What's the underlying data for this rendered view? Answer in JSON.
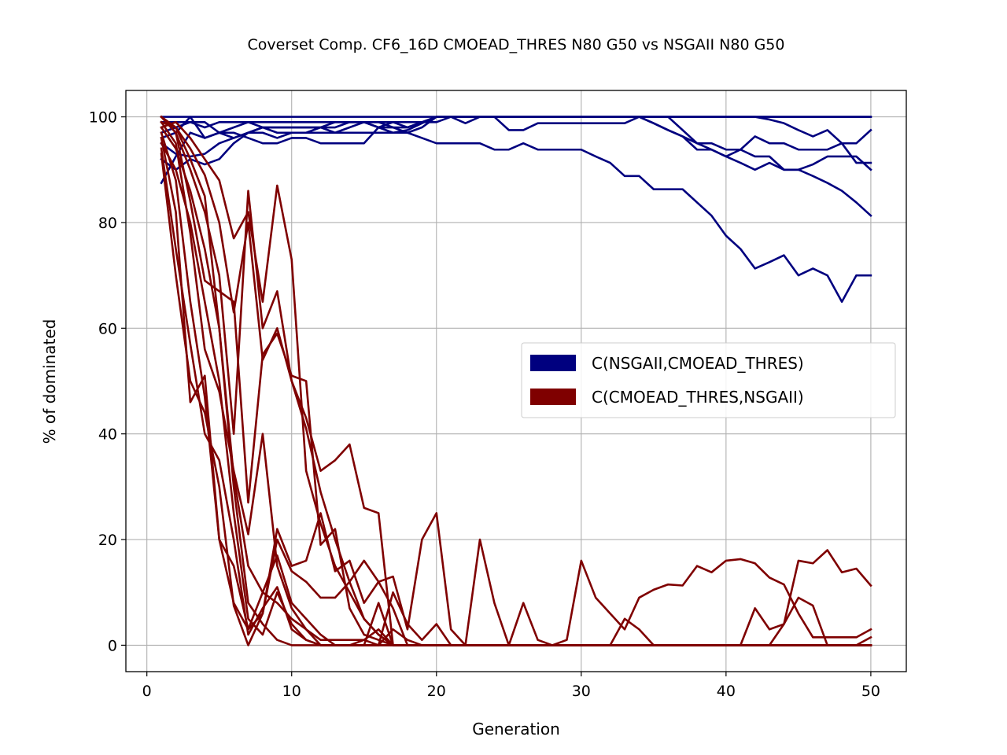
{
  "chart_data": {
    "type": "line",
    "title": "Coverset Comp. CF6_16D CMOEAD_THRES N80 G50 vs NSGAII N80 G50",
    "xlabel": "Generation",
    "ylabel": "% of dominated",
    "xlim": [
      -1.45,
      52.45
    ],
    "ylim": [
      -5,
      105
    ],
    "xticks": [
      0,
      10,
      20,
      30,
      40,
      50
    ],
    "yticks": [
      0,
      20,
      40,
      60,
      80,
      100
    ],
    "grid": true,
    "legend_position": "center-right",
    "legend": [
      {
        "label": "C(NSGAII,CMOEAD_THRES)",
        "color": "#00007f"
      },
      {
        "label": "C(CMOEAD_THRES,NSGAII)",
        "color": "#7f0000"
      }
    ],
    "groups": [
      {
        "name": "C(NSGAII,CMOEAD_THRES)",
        "color": "#00007f",
        "x_start": 1,
        "series": [
          {
            "values": [
              100,
              100,
              100,
              100,
              100,
              100,
              100,
              100,
              100,
              100,
              100,
              100,
              100,
              100,
              100,
              100,
              100,
              100,
              100,
              100,
              100,
              100,
              100,
              100,
              100,
              100,
              100,
              100,
              100,
              100,
              100,
              100,
              100,
              100,
              100,
              100,
              100,
              100,
              100,
              100,
              100,
              100,
              100,
              100,
              100,
              100,
              100,
              100,
              100,
              100
            ]
          },
          {
            "values": [
              99,
              99,
              99,
              98,
              99,
              99,
              99,
              99,
              99,
              99,
              99,
              99,
              99,
              99,
              99,
              99,
              99,
              99,
              99,
              99,
              100,
              100,
              100,
              100,
              100,
              100,
              100,
              100,
              100,
              100,
              100,
              100,
              100,
              100,
              100,
              100,
              100,
              100,
              100,
              100,
              100,
              100,
              100,
              100,
              100,
              100,
              100,
              100,
              100,
              100
            ]
          },
          {
            "values": [
              97,
              98,
              99,
              99,
              97,
              98,
              99,
              98,
              98,
              98,
              98,
              98,
              98,
              99,
              99,
              98,
              98,
              98,
              99,
              100,
              100,
              100,
              100,
              100,
              100,
              100,
              100,
              100,
              100,
              100,
              100,
              100,
              100,
              100,
              100,
              100,
              100,
              100,
              100,
              100,
              100,
              100,
              99.5,
              98.8,
              97.5,
              96.3,
              97.5,
              95,
              95,
              97.5
            ]
          },
          {
            "values": [
              96,
              97,
              100,
              96,
              97,
              97,
              96,
              95,
              95,
              96,
              96,
              95,
              95,
              95,
              95,
              98,
              97,
              97.5,
              98.8,
              100,
              100,
              98.8,
              100,
              100,
              100,
              100,
              100,
              100,
              100,
              100,
              100,
              100,
              100,
              100,
              100,
              100,
              97.5,
              95,
              95,
              93.8,
              93.8,
              92.5,
              92.5,
              90,
              90,
              91,
              92.5,
              92.5,
              92.5,
              90
            ]
          },
          {
            "values": [
              92,
              90,
              92,
              91,
              92,
              95,
              97,
              97,
              96,
              97,
              97,
              97,
              97,
              97,
              97,
              97,
              97,
              97,
              98,
              100,
              100,
              100,
              100,
              100,
              97.5,
              97.5,
              98.8,
              98.8,
              98.8,
              98.8,
              98.8,
              98.8,
              98.8,
              100,
              98.8,
              97.5,
              96.3,
              93.8,
              93.8,
              92.5,
              93.8,
              96.3,
              95,
              95,
              93.8,
              93.8,
              93.8,
              95,
              91.3,
              91.3
            ]
          },
          {
            "values": [
              87.5,
              92.5,
              97,
              96,
              97,
              96,
              97,
              98,
              97,
              97,
              97,
              98,
              99,
              99,
              99,
              98,
              99,
              98,
              99,
              100,
              100,
              100,
              100,
              100,
              100,
              100,
              100,
              100,
              100,
              100,
              100,
              100,
              100,
              100,
              98.8,
              97.5,
              96.3,
              95,
              93.8,
              92.5,
              91.3,
              90,
              91.3,
              90,
              90,
              88.8,
              87.5,
              86,
              83.8,
              81.3
            ]
          },
          {
            "values": [
              95,
              93,
              92.5,
              93,
              95,
              96,
              97,
              98,
              98,
              98,
              98,
              98,
              97,
              98,
              99,
              99,
              98,
              97,
              96,
              95,
              95,
              95,
              95,
              93.8,
              93.8,
              95,
              93.8,
              93.8,
              93.8,
              93.8,
              92.5,
              91.3,
              88.8,
              88.8,
              86.3,
              86.3,
              86.3,
              83.8,
              81.3,
              77.5,
              75,
              71.3,
              72.5,
              73.8,
              70,
              71.3,
              70,
              65,
              70,
              70
            ]
          }
        ]
      },
      {
        "name": "C(CMOEAD_THRES,NSGAII)",
        "color": "#7f0000",
        "x_start": 1,
        "series": [
          {
            "values": [
              100,
              97,
              90,
              82,
              70,
              40,
              86,
              60,
              67,
              50,
              43,
              33,
              35,
              38,
              26,
              25,
              0,
              0,
              0,
              0,
              0,
              0,
              0,
              0,
              0,
              0,
              0,
              0,
              0,
              0,
              0,
              0,
              0,
              0,
              0,
              0,
              0,
              0,
              0,
              0,
              0,
              0,
              0,
              0,
              0,
              0,
              0,
              0,
              0,
              0
            ]
          },
          {
            "values": [
              98,
              99,
              96,
              92,
              88,
              77,
              82,
              65,
              87,
              73,
              33,
              23,
              15,
              10,
              5,
              2,
              0,
              0,
              0,
              0,
              0,
              0,
              0,
              0,
              0,
              0,
              0,
              0,
              0,
              0,
              0,
              0,
              0,
              0,
              0,
              0,
              0,
              0,
              0,
              0,
              0,
              0,
              0,
              0,
              0,
              0,
              0,
              0,
              0,
              0
            ]
          },
          {
            "values": [
              100,
              98,
              94,
              89,
              80,
              63,
              80,
              54,
              60,
              50,
              41,
              29,
              20,
              12,
              5,
              2,
              0,
              0,
              0,
              0,
              0,
              0,
              0,
              0,
              0,
              0,
              0,
              0,
              0,
              0,
              0,
              0,
              0,
              0,
              0,
              0,
              0,
              0,
              0,
              0,
              0,
              0,
              0,
              0,
              0,
              0,
              0,
              0,
              0,
              0
            ]
          },
          {
            "values": [
              100,
              97,
              84,
              69,
              67,
              65,
              27,
              55,
              59,
              51,
              50,
              19,
              22,
              7,
              2,
              1,
              0,
              0,
              0,
              0,
              0,
              0,
              0,
              0,
              0,
              0,
              0,
              0,
              0,
              0,
              0,
              0,
              0,
              0,
              0,
              0,
              0,
              0,
              0,
              0,
              0,
              0,
              0,
              0,
              0,
              0,
              0,
              0,
              0,
              0
            ]
          },
          {
            "values": [
              99,
              95,
              78,
              56,
              48,
              33,
              21,
              40,
              15,
              7,
              3,
              0,
              0,
              0,
              0,
              8,
              0,
              0,
              0,
              0,
              0,
              0,
              0,
              0,
              0,
              0,
              0,
              0,
              0,
              0,
              0,
              0,
              0,
              0,
              0,
              0,
              0,
              0,
              0,
              0,
              0,
              0,
              0,
              0,
              0,
              0,
              0,
              0,
              0,
              0
            ]
          },
          {
            "values": [
              97,
              88,
              65,
              47,
              20,
              8,
              3,
              6,
              22,
              15,
              16,
              25,
              14,
              16,
              8,
              12,
              7,
              0,
              0,
              0,
              0,
              0,
              0,
              0,
              0,
              0,
              0,
              0,
              0,
              0,
              0,
              0,
              0,
              0,
              0,
              0,
              0,
              0,
              0,
              0,
              0,
              0,
              0,
              0,
              0,
              0,
              0,
              0,
              0,
              0
            ]
          },
          {
            "values": [
              96,
              82,
              46,
              51,
              20,
              15,
              3,
              10,
              17,
              8,
              5,
              2,
              0,
              0,
              1,
              3,
              0,
              0,
              0,
              0,
              0,
              0,
              0,
              0,
              0,
              0,
              0,
              0,
              0,
              0,
              0,
              0,
              0,
              0,
              0,
              0,
              0,
              0,
              0,
              0,
              0,
              0,
              0,
              0,
              0,
              0,
              0,
              0,
              0,
              0
            ]
          },
          {
            "values": [
              94,
              75,
              57,
              40,
              35,
              20,
              2,
              7,
              11,
              3,
              1,
              0,
              0,
              0,
              0,
              0,
              0,
              0,
              0,
              0,
              0,
              0,
              0,
              0,
              0,
              0,
              0,
              0,
              0,
              0,
              0,
              0,
              0,
              0,
              0,
              0,
              0,
              0,
              0,
              0,
              0,
              0,
              0,
              0,
              0,
              0,
              0,
              0,
              0,
              0
            ]
          },
          {
            "values": [
              93,
              70,
              50,
              44,
              30,
              7.5,
              0,
              6,
              20,
              14,
              12,
              9,
              9,
              12,
              16,
              12,
              13,
              3,
              20,
              25,
              3,
              0,
              20,
              8,
              0,
              8,
              1,
              0,
              0,
              0,
              0,
              0,
              0,
              0,
              0,
              0,
              0,
              0,
              0,
              0,
              0,
              0,
              0,
              0,
              0,
              0,
              0,
              0,
              0,
              0
            ]
          },
          {
            "values": [
              99,
              98,
              92,
              85,
              60,
              32,
              15,
              10,
              8,
              5,
              3,
              1,
              1,
              1,
              1,
              0,
              10,
              4,
              1,
              4,
              0,
              0,
              0,
              0,
              0,
              0,
              0,
              0,
              1,
              16,
              9,
              6,
              3,
              9,
              10.5,
              11.5,
              11.3,
              15,
              13.8,
              16,
              16.3,
              15.5,
              12.8,
              11.5,
              6,
              1.5,
              1.5,
              1.5,
              1.5,
              3
            ]
          },
          {
            "values": [
              95,
              90,
              80,
              65,
              50,
              25,
              5,
              2,
              10,
              4,
              1,
              0,
              0,
              0,
              0,
              0,
              3,
              1,
              0,
              0,
              0,
              0,
              0,
              0,
              0,
              0,
              0,
              0,
              0,
              0,
              0,
              0,
              5,
              3,
              0,
              0,
              0,
              0,
              0,
              0,
              0,
              7,
              3,
              4,
              16,
              15.5,
              18,
              13.8,
              14.5,
              11.3
            ]
          },
          {
            "values": [
              98,
              94,
              86,
              75,
              60,
              30,
              8,
              4,
              1,
              0,
              0,
              0,
              0,
              0,
              0,
              0,
              0,
              0,
              0,
              0,
              0,
              0,
              0,
              0,
              0,
              0,
              0,
              0,
              0,
              0,
              0,
              0,
              0,
              0,
              0,
              0,
              0,
              0,
              0,
              0,
              0,
              0,
              0,
              4,
              9,
              7.5,
              0,
              0,
              0,
              1.5
            ]
          }
        ]
      }
    ]
  }
}
